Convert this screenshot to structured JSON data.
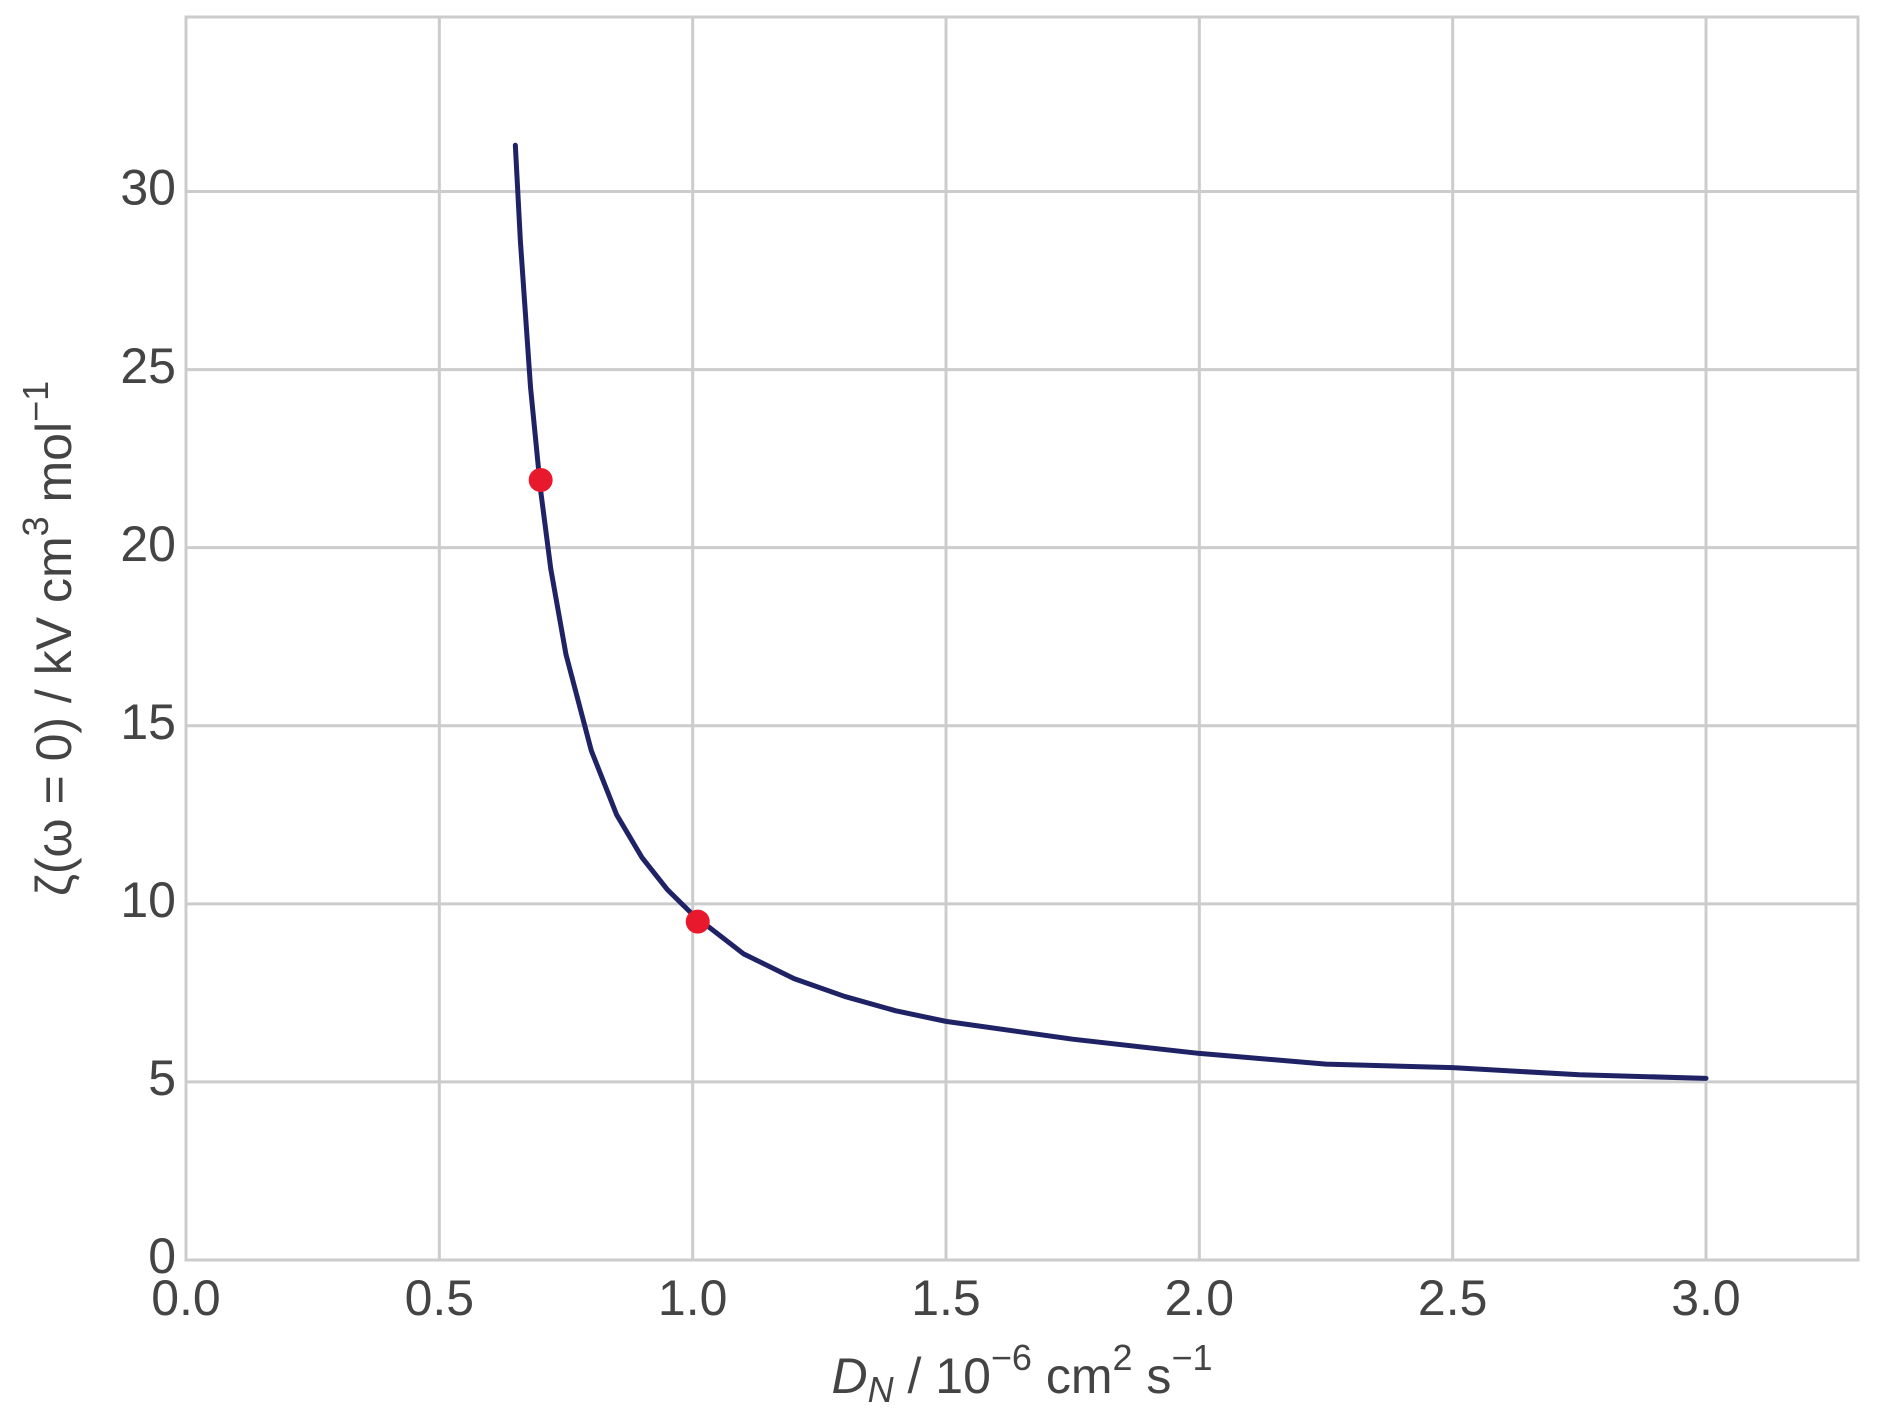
{
  "chart_data": {
    "type": "line",
    "xlabel": [
      "D",
      "N",
      " / 10",
      "−6",
      " cm",
      "2",
      " s",
      "−1"
    ],
    "ylabel": [
      "ζ(ω = 0) / kV cm",
      "3",
      " mol",
      "−1"
    ],
    "series": [
      {
        "type": "line",
        "color": "#1f2366",
        "x": [
          0.65,
          0.66,
          0.68,
          0.7,
          0.72,
          0.75,
          0.8,
          0.85,
          0.9,
          0.95,
          1.0,
          1.1,
          1.2,
          1.3,
          1.4,
          1.5,
          1.75,
          2.0,
          2.25,
          2.5,
          2.75,
          3.0
        ],
        "values": [
          31.3,
          28.6,
          24.5,
          21.6,
          19.4,
          17.0,
          14.3,
          12.5,
          11.3,
          10.4,
          9.7,
          8.6,
          7.9,
          7.4,
          7.0,
          6.7,
          6.2,
          5.8,
          5.5,
          5.4,
          5.2,
          5.1
        ]
      },
      {
        "type": "scatter",
        "color": "#e8192c",
        "x": [
          0.7,
          1.01
        ],
        "values": [
          21.9,
          9.5
        ]
      }
    ],
    "xlim": [
      0,
      3.3
    ],
    "ylim": [
      0,
      34.9
    ],
    "xticks": [
      {
        "value": 0,
        "label": "0.0"
      },
      {
        "value": 0.5,
        "label": "0.5"
      },
      {
        "value": 1,
        "label": "1.0"
      },
      {
        "value": 1.5,
        "label": "1.5"
      },
      {
        "value": 2,
        "label": "2.0"
      },
      {
        "value": 2.5,
        "label": "2.5"
      },
      {
        "value": 3,
        "label": "3.0"
      }
    ],
    "yticks": [
      0,
      5,
      10,
      15,
      20,
      25,
      30
    ],
    "grid": true
  }
}
